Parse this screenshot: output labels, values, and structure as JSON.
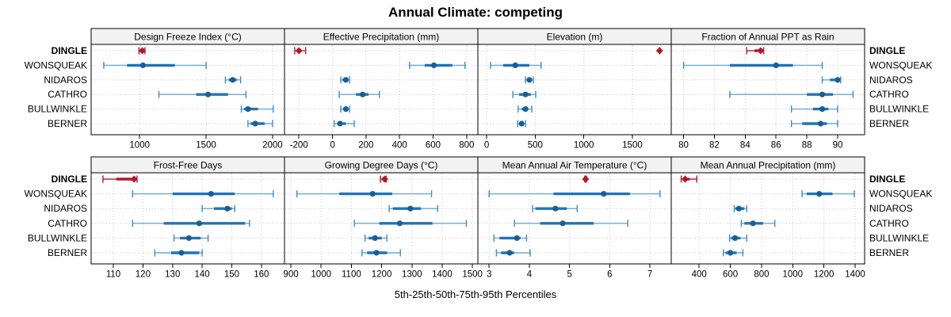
{
  "title": "Annual Climate: competing",
  "xlabel": "5th-25th-50th-75th-95th Percentiles",
  "colors": {
    "highlight": "#B2182B",
    "whisker": "#5FA0CF",
    "cap": "#3E8BC2",
    "iqr_bar": "#2273B5",
    "median_dot": "#185F96",
    "grid": "#C6C6C6",
    "strip_bg": "#F2F2F2",
    "panel_bg": "#FFFFFF",
    "border": "#000000"
  },
  "chart_data": {
    "type": "dotplot-percentile",
    "title": "Annual Climate: competing",
    "xlabel": "5th-25th-50th-75th-95th Percentiles",
    "percentile_labels": [
      "5th",
      "25th",
      "50th",
      "75th",
      "95th"
    ],
    "stations": [
      "DINGLE",
      "WONSQUEAK",
      "NIDAROS",
      "CATHRO",
      "BULLWINKLE",
      "BERNER"
    ],
    "highlight": "DINGLE",
    "legend_position": "none",
    "grid": "dotted",
    "panels": [
      {
        "label": "Design Freeze Index (°C)",
        "row": 0,
        "col": 0,
        "xlim": [
          635,
          2090
        ],
        "ticks": [
          1000,
          1500,
          2000
        ],
        "series": [
          {
            "name": "DINGLE",
            "percentiles": [
              995,
              1010,
              1020,
              1030,
              1040
            ]
          },
          {
            "name": "WONSQUEAK",
            "percentiles": [
              730,
              905,
              1025,
              1265,
              1500
            ]
          },
          {
            "name": "NIDAROS",
            "percentiles": [
              1645,
              1670,
              1700,
              1730,
              1760
            ]
          },
          {
            "name": "CATHRO",
            "percentiles": [
              1145,
              1425,
              1515,
              1665,
              1800
            ]
          },
          {
            "name": "BULLWINKLE",
            "percentiles": [
              1765,
              1785,
              1815,
              1890,
              2005
            ]
          },
          {
            "name": "BERNER",
            "percentiles": [
              1815,
              1835,
              1870,
              1940,
              2000
            ]
          }
        ]
      },
      {
        "label": "Effective Precipitation (mm)",
        "row": 0,
        "col": 1,
        "xlim": [
          -286,
          867
        ],
        "ticks": [
          -200,
          0,
          200,
          400,
          600,
          800
        ],
        "series": [
          {
            "name": "DINGLE",
            "percentiles": [
              -225,
              -212,
              -200,
              -185,
              -160
            ]
          },
          {
            "name": "WONSQUEAK",
            "percentiles": [
              460,
              550,
              605,
              715,
              790
            ]
          },
          {
            "name": "NIDAROS",
            "percentiles": [
              50,
              60,
              80,
              90,
              102
            ]
          },
          {
            "name": "CATHRO",
            "percentiles": [
              40,
              140,
              180,
              215,
              280
            ]
          },
          {
            "name": "BULLWINKLE",
            "percentiles": [
              50,
              65,
              80,
              92,
              102
            ]
          },
          {
            "name": "BERNER",
            "percentiles": [
              10,
              30,
              45,
              80,
              130
            ]
          }
        ]
      },
      {
        "label": "Elevation (m)",
        "row": 0,
        "col": 2,
        "xlim": [
          -90,
          1900
        ],
        "ticks": [
          0,
          500,
          1000,
          1500
        ],
        "series": [
          {
            "name": "DINGLE",
            "percentiles": [
              1778,
              1779,
              1780,
              1781,
              1782
            ]
          },
          {
            "name": "WONSQUEAK",
            "percentiles": [
              40,
              170,
              295,
              440,
              560
            ]
          },
          {
            "name": "NIDAROS",
            "percentiles": [
              400,
              420,
              440,
              460,
              480
            ]
          },
          {
            "name": "CATHRO",
            "percentiles": [
              270,
              335,
              400,
              455,
              505
            ]
          },
          {
            "name": "BULLWINKLE",
            "percentiles": [
              325,
              360,
              400,
              430,
              465
            ]
          },
          {
            "name": "BERNER",
            "percentiles": [
              320,
              340,
              360,
              380,
              400
            ]
          }
        ]
      },
      {
        "label": "Fraction of Annual PPT as Rain",
        "row": 0,
        "col": 3,
        "xlim": [
          79.2,
          91.75
        ],
        "ticks": [
          80,
          82,
          84,
          86,
          88,
          90
        ],
        "series": [
          {
            "name": "DINGLE",
            "percentiles": [
              84.1,
              84.6,
              85.0,
              85.1,
              85.2
            ]
          },
          {
            "name": "WONSQUEAK",
            "percentiles": [
              80.0,
              83.0,
              86.0,
              87.1,
              89.0
            ]
          },
          {
            "name": "NIDAROS",
            "percentiles": [
              89.0,
              89.5,
              90.0,
              90.1,
              90.2
            ]
          },
          {
            "name": "CATHRO",
            "percentiles": [
              83.0,
              88.0,
              89.0,
              89.7,
              91.0
            ]
          },
          {
            "name": "BULLWINKLE",
            "percentiles": [
              87.0,
              88.4,
              89.0,
              89.4,
              90.0
            ]
          },
          {
            "name": "BERNER",
            "percentiles": [
              87.0,
              87.7,
              88.9,
              89.3,
              90.0
            ]
          }
        ]
      },
      {
        "label": "Frost-Free Days",
        "row": 1,
        "col": 0,
        "xlim": [
          102.5,
          167.8
        ],
        "ticks": [
          110,
          120,
          130,
          140,
          150,
          160
        ],
        "series": [
          {
            "name": "DINGLE",
            "percentiles": [
              106.5,
              111,
              117,
              117.5,
              118
            ]
          },
          {
            "name": "WONSQUEAK",
            "percentiles": [
              116.5,
              130,
              143,
              151,
              164
            ]
          },
          {
            "name": "NIDAROS",
            "percentiles": [
              140,
              144,
              148.5,
              150,
              151
            ]
          },
          {
            "name": "CATHRO",
            "percentiles": [
              116.5,
              127,
              139,
              154.5,
              156
            ]
          },
          {
            "name": "BULLWINKLE",
            "percentiles": [
              130.5,
              132.5,
              135.5,
              139.5,
              142
            ]
          },
          {
            "name": "BERNER",
            "percentiles": [
              124,
              129.5,
              133,
              139,
              140
            ]
          }
        ]
      },
      {
        "label": "Growing Degree Days (°C)",
        "row": 1,
        "col": 1,
        "xlim": [
          879,
          1518
        ],
        "ticks": [
          900,
          1000,
          1100,
          1200,
          1300,
          1400,
          1500
        ],
        "series": [
          {
            "name": "DINGLE",
            "percentiles": [
              1196,
              1203,
              1210,
              1213,
              1215
            ]
          },
          {
            "name": "WONSQUEAK",
            "percentiles": [
              920,
              1060,
              1170,
              1235,
              1365
            ]
          },
          {
            "name": "NIDAROS",
            "percentiles": [
              1225,
              1237,
              1295,
              1330,
              1385
            ]
          },
          {
            "name": "CATHRO",
            "percentiles": [
              1110,
              1192,
              1260,
              1368,
              1480
            ]
          },
          {
            "name": "BULLWINKLE",
            "percentiles": [
              1145,
              1157,
              1178,
              1200,
              1217
            ]
          },
          {
            "name": "BERNER",
            "percentiles": [
              1135,
              1152,
              1183,
              1218,
              1262
            ]
          }
        ]
      },
      {
        "label": "Mean Annual Air Temperature (°C)",
        "row": 1,
        "col": 2,
        "xlim": [
          2.72,
          7.53
        ],
        "ticks": [
          3,
          4,
          5,
          6,
          7
        ],
        "series": [
          {
            "name": "DINGLE",
            "percentiles": [
              5.38,
              5.39,
              5.4,
              5.41,
              5.42
            ]
          },
          {
            "name": "WONSQUEAK",
            "percentiles": [
              3.0,
              4.6,
              5.85,
              6.5,
              7.25
            ]
          },
          {
            "name": "NIDAROS",
            "percentiles": [
              4.08,
              4.15,
              4.65,
              4.93,
              5.19
            ]
          },
          {
            "name": "CATHRO",
            "percentiles": [
              3.63,
              4.27,
              4.83,
              5.6,
              6.45
            ]
          },
          {
            "name": "BULLWINKLE",
            "percentiles": [
              3.12,
              3.26,
              3.69,
              3.78,
              3.93
            ]
          },
          {
            "name": "BERNER",
            "percentiles": [
              3.18,
              3.3,
              3.51,
              3.62,
              4.02
            ]
          }
        ]
      },
      {
        "label": "Mean Annual Precipitation (mm)",
        "row": 1,
        "col": 3,
        "xlim": [
          221,
          1461
        ],
        "ticks": [
          400,
          600,
          800,
          1000,
          1200,
          1400
        ],
        "series": [
          {
            "name": "DINGLE",
            "percentiles": [
              285,
              295,
              310,
              340,
              385
            ]
          },
          {
            "name": "WONSQUEAK",
            "percentiles": [
              1060,
              1090,
              1170,
              1255,
              1395
            ]
          },
          {
            "name": "NIDAROS",
            "percentiles": [
              625,
              632,
              655,
              690,
              705
            ]
          },
          {
            "name": "CATHRO",
            "percentiles": [
              670,
              690,
              745,
              810,
              885
            ]
          },
          {
            "name": "BULLWINKLE",
            "percentiles": [
              595,
              605,
              630,
              665,
              705
            ]
          },
          {
            "name": "BERNER",
            "percentiles": [
              555,
              570,
              600,
              640,
              680
            ]
          }
        ]
      }
    ]
  }
}
